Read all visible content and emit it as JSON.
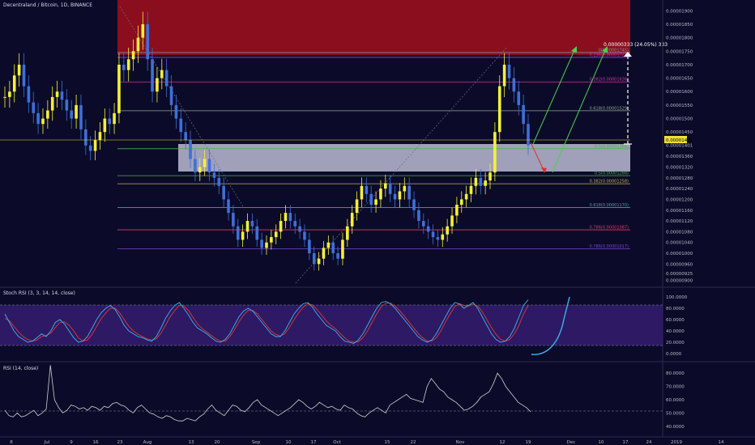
{
  "header": {
    "title": "Decentraland / Bitcoin, 1D, BINANCE"
  },
  "colors": {
    "background": "#0b0b29",
    "bull": "#f6f03a",
    "bear": "#3f6fd8",
    "supply_zone": "#8b0e1f",
    "demand_zone": "#c6c6de",
    "stoch_band": "#3a1f78",
    "k_line": "#3db3f0",
    "d_line": "#e23a2d",
    "rsi_line": "#d0d0d0"
  },
  "chart_data": [
    {
      "type": "candlestick",
      "title": "Decentraland / Bitcoin, 1D, BINANCE",
      "ylim": [
        8.95e-06,
        1.925e-05
      ],
      "price_ticks": [
        "0.00001900",
        "0.00001850",
        "0.00001800",
        "0.00001750",
        "0.00001700",
        "0.00001650",
        "0.00001600",
        "0.00001550",
        "0.00001500",
        "0.00001450",
        "0.00001401",
        "0.00001360",
        "0.00001320",
        "0.00001280",
        "0.00001240",
        "0.00001200",
        "0.00001160",
        "0.00001120",
        "0.00001080",
        "0.00001040",
        "0.00001000",
        "0.00000960",
        "0.00000925",
        "0.00000900"
      ],
      "current_price": "0.00001401",
      "measure_label": "0.00000333 (24.05%) 333",
      "fib_levels": [
        {
          "label": "0(0.00001745)",
          "price": 1.745e-05,
          "color": "#8a8a9a"
        },
        {
          "label": "0.236(0.00001727)",
          "price": 1.727e-05,
          "color": "#b03cc8"
        },
        {
          "label": "0.382(0.00001636)",
          "price": 1.636e-05,
          "color": "#c8389c"
        },
        {
          "label": "0.618(0.00001529)",
          "price": 1.529e-05,
          "color": "#8fa68a"
        },
        {
          "label": "0.5(0.00001388)",
          "price": 1.388e-05,
          "color": "#4caf50"
        },
        {
          "label": "0.5(0.00001288)",
          "price": 1.288e-05,
          "color": "#56a85a"
        },
        {
          "label": "0.382(0.00001258)",
          "price": 1.258e-05,
          "color": "#c0b050"
        },
        {
          "label": "0.618(0.00001170)",
          "price": 1.17e-05,
          "color": "#3aa6a0"
        },
        {
          "label": "0.786(0.00001087)",
          "price": 1.087e-05,
          "color": "#e0386a"
        },
        {
          "label": "0.786(0.00001017)",
          "price": 1.017e-05,
          "color": "#7b44d8"
        }
      ],
      "zones": [
        {
          "name": "supply",
          "from": 1.725e-05,
          "to": 1.92e-05
        },
        {
          "name": "demand",
          "from": 1.3e-05,
          "to": 1.395e-05
        }
      ],
      "closes": [
        1.58,
        1.6,
        1.66,
        1.7,
        1.62,
        1.56,
        1.52,
        1.48,
        1.5,
        1.53,
        1.58,
        1.6,
        1.57,
        1.53,
        1.5,
        1.55,
        1.46,
        1.4,
        1.38,
        1.42,
        1.45,
        1.5,
        1.48,
        1.52,
        1.7,
        1.68,
        1.72,
        1.75,
        1.8,
        1.85,
        1.72,
        1.6,
        1.65,
        1.68,
        1.62,
        1.55,
        1.5,
        1.45,
        1.42,
        1.35,
        1.3,
        1.32,
        1.35,
        1.3,
        1.28,
        1.25,
        1.2,
        1.15,
        1.1,
        1.05,
        1.08,
        1.12,
        1.1,
        1.05,
        1.02,
        1.04,
        1.06,
        1.08,
        1.12,
        1.15,
        1.12,
        1.1,
        1.08,
        1.05,
        1.0,
        0.96,
        0.98,
        1.02,
        1.04,
        1.0,
        0.98,
        1.05,
        1.1,
        1.15,
        1.2,
        1.25,
        1.22,
        1.18,
        1.2,
        1.24,
        1.26,
        1.22,
        1.2,
        1.23,
        1.25,
        1.2,
        1.16,
        1.12,
        1.1,
        1.08,
        1.06,
        1.05,
        1.07,
        1.1,
        1.14,
        1.18,
        1.2,
        1.22,
        1.25,
        1.28,
        1.25,
        1.27,
        1.3,
        1.45,
        1.62,
        1.7,
        1.65,
        1.6,
        1.55,
        1.48,
        1.4
      ],
      "stoch_rsi": {
        "title": "Stoch RSI (3, 3, 14, 14, close)",
        "ticks": [
          "100.0000",
          "80.0000",
          "60.0000",
          "40.0000",
          "20.0000",
          "0.0000"
        ],
        "k": [
          70,
          55,
          40,
          30,
          25,
          20,
          22,
          28,
          35,
          30,
          40,
          55,
          60,
          52,
          40,
          28,
          20,
          22,
          30,
          45,
          60,
          72,
          80,
          85,
          78,
          65,
          50,
          40,
          35,
          30,
          28,
          24,
          22,
          30,
          45,
          62,
          75,
          85,
          90,
          80,
          68,
          55,
          45,
          40,
          35,
          28,
          22,
          20,
          25,
          35,
          50,
          65,
          75,
          80,
          75,
          65,
          55,
          45,
          35,
          30,
          30,
          40,
          55,
          70,
          80,
          88,
          90,
          82,
          70,
          60,
          50,
          45,
          40,
          30,
          22,
          20,
          18,
          24,
          35,
          50,
          65,
          80,
          90,
          92,
          88,
          80,
          70,
          60,
          50,
          40,
          30,
          24,
          20,
          24,
          35,
          50,
          65,
          80,
          90,
          88,
          80,
          85,
          90,
          80,
          65,
          50,
          35,
          25,
          20,
          22,
          30,
          45,
          65,
          85,
          95
        ],
        "d": [
          62,
          58,
          48,
          38,
          30,
          25,
          22,
          24,
          30,
          32,
          36,
          46,
          55,
          56,
          50,
          40,
          28,
          22,
          24,
          34,
          48,
          62,
          72,
          80,
          80,
          72,
          60,
          48,
          40,
          34,
          30,
          26,
          24,
          26,
          36,
          50,
          65,
          76,
          85,
          84,
          76,
          64,
          52,
          44,
          38,
          32,
          26,
          22,
          22,
          30,
          42,
          56,
          68,
          76,
          76,
          70,
          60,
          50,
          40,
          34,
          31,
          35,
          46,
          60,
          72,
          82,
          88,
          86,
          78,
          68,
          58,
          50,
          44,
          36,
          28,
          22,
          20,
          21,
          28,
          40,
          55,
          70,
          83,
          89,
          89,
          84,
          76,
          66,
          56,
          46,
          36,
          28,
          22,
          22,
          28,
          40,
          56,
          70,
          83,
          88,
          85,
          84,
          87,
          84,
          74,
          60,
          46,
          34,
          25,
          22,
          25,
          35,
          50,
          70,
          85
        ]
      },
      "rsi": {
        "title": "RSI (14, close)",
        "ticks": [
          "80.0000",
          "70.0000",
          "60.0000",
          "50.0000",
          "40.0000"
        ],
        "values": [
          52,
          48,
          47,
          50,
          47,
          48,
          50,
          52,
          48,
          50,
          53,
          86,
          60,
          54,
          50,
          52,
          56,
          55,
          53,
          54,
          52,
          55,
          54,
          52,
          55,
          54,
          57,
          58,
          56,
          55,
          52,
          50,
          54,
          56,
          53,
          50,
          49,
          47,
          46,
          48,
          47,
          45,
          44,
          44,
          46,
          45,
          44,
          47,
          49,
          53,
          56,
          52,
          50,
          48,
          52,
          56,
          55,
          52,
          51,
          54,
          58,
          60,
          56,
          54,
          52,
          50,
          48,
          50,
          52,
          54,
          57,
          60,
          58,
          55,
          53,
          55,
          58,
          56,
          54,
          55,
          53,
          52,
          56,
          54,
          53,
          50,
          48,
          47,
          50,
          52,
          54,
          52,
          50,
          56,
          58,
          60,
          62,
          64,
          61,
          60,
          59,
          58,
          70,
          76,
          72,
          68,
          66,
          62,
          60,
          58,
          55,
          52,
          53,
          55,
          58,
          62,
          64,
          66,
          72,
          80,
          76,
          70,
          66,
          62,
          58,
          56,
          54,
          51
        ]
      },
      "x_ticks": [
        "8",
        "Jul",
        "9",
        "16",
        "23",
        "Aug",
        "13",
        "20",
        "Sep",
        "10",
        "17",
        "Oct",
        "15",
        "22",
        "Nov",
        "12",
        "19",
        "Dec",
        "10",
        "17",
        "24",
        "2019",
        "14"
      ]
    }
  ]
}
